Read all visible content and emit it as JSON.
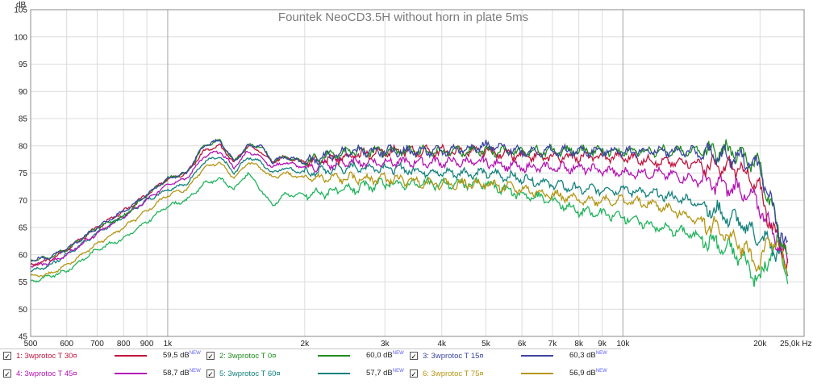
{
  "chart_data": {
    "type": "line",
    "title": "Fountek NeoCD3.5H without horn in plate 5ms",
    "ylabel": "dB",
    "xlabel": "Hz",
    "x_scale": "log",
    "xlim": [
      500,
      25000
    ],
    "ylim": [
      45,
      105
    ],
    "y_ticks": [
      45,
      50,
      55,
      60,
      65,
      70,
      75,
      80,
      85,
      90,
      95,
      100,
      105
    ],
    "x_ticks": [
      {
        "value": 500,
        "label": "500"
      },
      {
        "value": 600,
        "label": "600"
      },
      {
        "value": 700,
        "label": "700"
      },
      {
        "value": 800,
        "label": "800"
      },
      {
        "value": 900,
        "label": "900"
      },
      {
        "value": 1000,
        "label": "1k"
      },
      {
        "value": 2000,
        "label": "2k"
      },
      {
        "value": 3000,
        "label": "3k"
      },
      {
        "value": 4000,
        "label": "4k"
      },
      {
        "value": 5000,
        "label": "5k"
      },
      {
        "value": 6000,
        "label": "6k"
      },
      {
        "value": 7000,
        "label": "7k"
      },
      {
        "value": 8000,
        "label": "8k"
      },
      {
        "value": 9000,
        "label": "9k"
      },
      {
        "value": 10000,
        "label": "10k"
      },
      {
        "value": 20000,
        "label": "20k"
      },
      {
        "value": 25000,
        "label": "25,0k Hz"
      }
    ],
    "grid": true,
    "legend_position": "bottom",
    "series": [
      {
        "id": 1,
        "name": "1: 3wprotoc T 30¤",
        "level": "59,5 dB",
        "badge": "NEW",
        "color": "#c0143c",
        "x": [
          500,
          550,
          600,
          700,
          800,
          900,
          1000,
          1100,
          1200,
          1300,
          1400,
          1500,
          1600,
          1700,
          1800,
          2000,
          2500,
          3000,
          4000,
          5000,
          6000,
          7000,
          8000,
          10000,
          12000,
          14000,
          16000,
          18000,
          20000,
          21000,
          22000,
          23000
        ],
        "y": [
          58,
          59,
          61,
          65,
          68,
          71,
          74,
          75,
          79,
          80,
          77,
          80,
          79,
          77,
          78,
          77,
          78,
          79,
          79,
          79,
          78,
          78,
          78,
          78,
          77,
          77,
          76,
          76,
          72,
          66,
          62,
          59
        ]
      },
      {
        "id": 2,
        "name": "2: 3wprotoc T 0¤",
        "level": "60,0 dB",
        "badge": "NEW",
        "color": "#1e8c1e",
        "x": [
          500,
          550,
          600,
          700,
          800,
          900,
          1000,
          1100,
          1200,
          1300,
          1400,
          1500,
          1600,
          1700,
          1800,
          2000,
          2500,
          3000,
          4000,
          5000,
          6000,
          7000,
          8000,
          10000,
          12000,
          14000,
          16000,
          18000,
          20000,
          21000,
          22000,
          23000
        ],
        "y": [
          59,
          59.5,
          61,
          65,
          67,
          71,
          74,
          75,
          80,
          81,
          77,
          80,
          80,
          77,
          78,
          77,
          79,
          79,
          79,
          79,
          79,
          79,
          79,
          79,
          79,
          79,
          79,
          79,
          76,
          70,
          64,
          60
        ]
      },
      {
        "id": 3,
        "name": "3: 3wprotoc T 15¤",
        "level": "60,3 dB",
        "badge": "NEW",
        "color": "#3c46a0",
        "x": [
          500,
          550,
          600,
          700,
          800,
          900,
          1000,
          1100,
          1200,
          1300,
          1400,
          1500,
          1600,
          1700,
          1800,
          2000,
          2500,
          3000,
          4000,
          5000,
          6000,
          7000,
          8000,
          10000,
          12000,
          14000,
          16000,
          18000,
          20000,
          21000,
          22000,
          23000
        ],
        "y": [
          59,
          59.5,
          61,
          65,
          68,
          71,
          74,
          75,
          80,
          81,
          77,
          80,
          80,
          77,
          78,
          77,
          79,
          79,
          79,
          80,
          79,
          79,
          79,
          79,
          79,
          79,
          78,
          78,
          76,
          70,
          65,
          61
        ]
      },
      {
        "id": 4,
        "name": "4: 3wprotoc T 45¤",
        "level": "58,7 dB",
        "badge": "NEW",
        "color": "#b414b4",
        "x": [
          500,
          550,
          600,
          700,
          800,
          900,
          1000,
          1100,
          1200,
          1300,
          1400,
          1500,
          1600,
          1700,
          1800,
          2000,
          2500,
          3000,
          4000,
          5000,
          6000,
          7000,
          8000,
          10000,
          12000,
          14000,
          16000,
          18000,
          20000,
          21000,
          22000,
          23000
        ],
        "y": [
          58,
          58.5,
          60,
          64,
          67,
          70,
          73,
          74,
          78,
          79,
          76,
          79,
          78,
          76,
          77,
          76,
          77,
          77,
          77,
          77,
          76,
          76,
          76,
          75,
          75,
          74,
          73,
          72,
          69,
          65,
          62,
          59
        ]
      },
      {
        "id": 5,
        "name": "5: 3wprotoc T 60¤",
        "level": "57,7 dB",
        "badge": "NEW",
        "color": "#14827d",
        "x": [
          500,
          550,
          600,
          700,
          800,
          900,
          1000,
          1100,
          1200,
          1300,
          1400,
          1500,
          1600,
          1700,
          1800,
          2000,
          2500,
          3000,
          4000,
          5000,
          6000,
          7000,
          8000,
          10000,
          12000,
          14000,
          16000,
          18000,
          20000,
          21000,
          22000,
          23000
        ],
        "y": [
          57,
          58,
          60,
          64,
          67,
          70,
          72,
          73,
          77,
          78,
          75,
          78,
          77,
          75,
          76,
          75,
          76,
          76,
          75,
          75,
          74,
          73,
          72,
          72,
          71,
          70,
          68,
          66,
          63,
          62,
          60,
          57
        ]
      },
      {
        "id": 6,
        "name": "6: 3wprotoc T 75¤",
        "level": "56,9 dB",
        "badge": "NEW",
        "color": "#b49614",
        "x": [
          500,
          550,
          600,
          700,
          800,
          900,
          1000,
          1100,
          1200,
          1300,
          1400,
          1500,
          1600,
          1700,
          1800,
          2000,
          2500,
          3000,
          4000,
          5000,
          6000,
          7000,
          8000,
          10000,
          12000,
          14000,
          16000,
          18000,
          20000,
          21000,
          22000,
          23000
        ],
        "y": [
          56,
          56.5,
          58,
          62,
          65,
          68,
          71,
          72,
          76,
          77,
          74,
          77,
          76,
          74,
          75,
          74,
          74,
          74,
          73,
          73,
          72,
          71,
          70,
          70,
          69,
          67,
          65,
          62,
          58,
          63,
          62,
          57
        ]
      },
      {
        "id": 7,
        "name": "",
        "level": "",
        "badge": "",
        "color": "#1eb45a",
        "x": [
          500,
          550,
          600,
          700,
          800,
          900,
          1000,
          1100,
          1200,
          1300,
          1400,
          1500,
          1600,
          1700,
          1800,
          2000,
          2500,
          3000,
          4000,
          5000,
          6000,
          7000,
          8000,
          10000,
          12000,
          14000,
          16000,
          18000,
          20000,
          21000,
          22000,
          23000
        ],
        "y": [
          55,
          56,
          57,
          61,
          63,
          66,
          69,
          70,
          73,
          74,
          72,
          75,
          72,
          69,
          71,
          71,
          72,
          73,
          73,
          73,
          71,
          70,
          68,
          67,
          65,
          64,
          62,
          60,
          55,
          60,
          62,
          56
        ]
      }
    ]
  },
  "legend": {
    "check_glyph": "✓"
  }
}
